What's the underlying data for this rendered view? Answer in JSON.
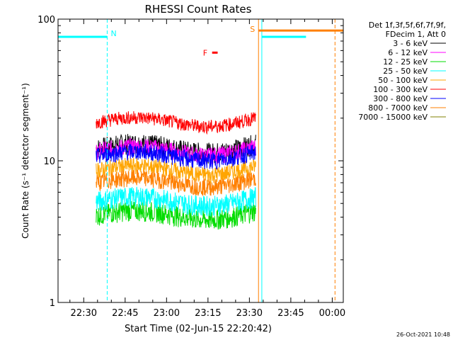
{
  "chart_data": {
    "type": "line",
    "title": "RHESSI Count Rates",
    "xlabel": "Start Time (02-Jun-15 22:20:42)",
    "ylabel": "Count Rate (s⁻¹ detector segment⁻¹)",
    "yscale": "log",
    "ylim": [
      1,
      100
    ],
    "x_range_minutes_after_22_00": [
      20.7,
      124
    ],
    "x_ticks": [
      {
        "label": "22:30",
        "minute": 30
      },
      {
        "label": "22:45",
        "minute": 45
      },
      {
        "label": "23:00",
        "minute": 60
      },
      {
        "label": "23:15",
        "minute": 75
      },
      {
        "label": "23:30",
        "minute": 90
      },
      {
        "label": "23:45",
        "minute": 105
      },
      {
        "label": "00:00",
        "minute": 120
      }
    ],
    "y_ticks": [
      {
        "label": "1",
        "value": 1
      },
      {
        "label": "10",
        "value": 10
      },
      {
        "label": "100",
        "value": 100
      }
    ],
    "legend_header": [
      "Det 1f,3f,5f,6f,7f,9f,",
      "FDecim 1, Att 0"
    ],
    "legend_position": "right",
    "data_interval_minutes": [
      34.5,
      92.3
    ],
    "series": [
      {
        "name": "3 - 6 keV",
        "color": "#000000",
        "mean": 12.8,
        "amp": 0.12
      },
      {
        "name": "6 - 12 keV",
        "color": "#ff00ff",
        "mean": 12.2,
        "amp": 0.1
      },
      {
        "name": "12 - 25 keV",
        "color": "#00dd00",
        "mean": 4.3,
        "amp": 0.12
      },
      {
        "name": "25 - 50 keV",
        "color": "#00ffff",
        "mean": 5.4,
        "amp": 0.12
      },
      {
        "name": "50 - 100 keV",
        "color": "#ffa500",
        "mean": 8.9,
        "amp": 0.1
      },
      {
        "name": "100 - 300 keV",
        "color": "#ff0000",
        "mean": 19.5,
        "amp": 0.08
      },
      {
        "name": "300 - 800 keV",
        "color": "#0000ff",
        "mean": 11.2,
        "amp": 0.1
      },
      {
        "name": "800 - 7000 keV",
        "color": "#ff7f00",
        "mean": 7.3,
        "amp": 0.1
      },
      {
        "name": "7000 - 15000 keV",
        "color": "#808000",
        "mean": 1.0,
        "amp": 0.0
      }
    ],
    "annotations": [
      {
        "label": "N",
        "type": "night",
        "color": "#00ffff",
        "start_minute": 20.7,
        "end_minute": 38.5,
        "level": 75
      },
      {
        "label": "S",
        "type": "saa",
        "color": "#ff7f00",
        "start_minute": 93.3,
        "end_minute": 124,
        "level": 83
      },
      {
        "label": "F",
        "type": "flare",
        "color": "#ff0000",
        "start_minute": 76.5,
        "end_minute": 78.5,
        "level": 58
      }
    ],
    "night_period_2": {
      "start_minute": 94.5,
      "end_minute": 110.5,
      "level": 75
    }
  },
  "timestamp": "26-Oct-2021 10:48"
}
